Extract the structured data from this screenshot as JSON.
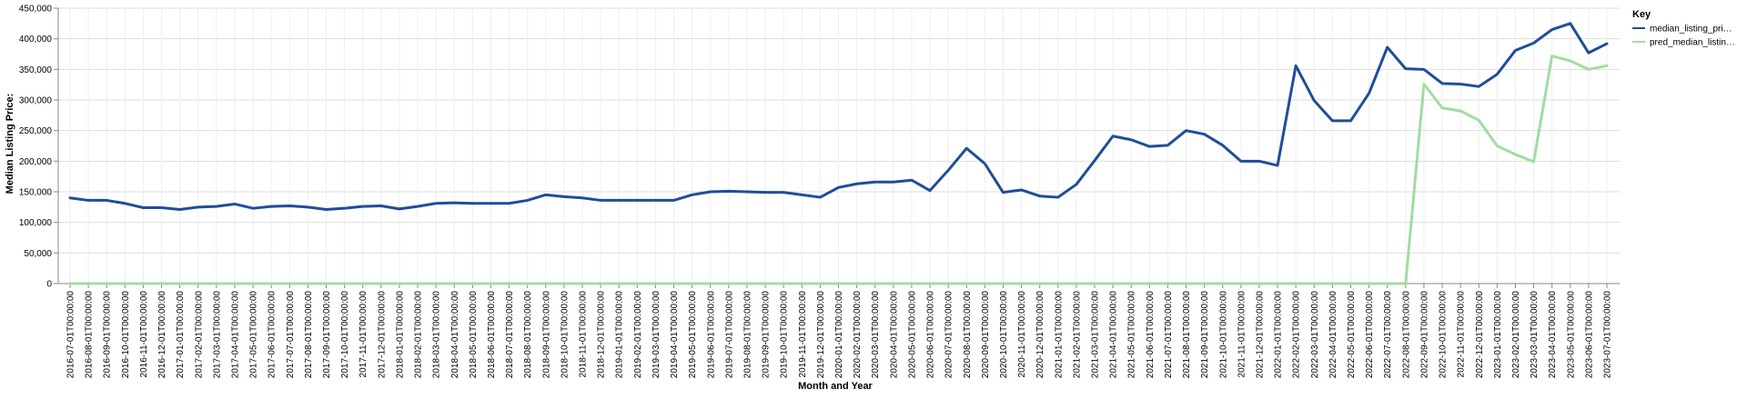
{
  "chart_data": {
    "type": "line",
    "xlabel": "Month and Year",
    "ylabel": "Median Listing Price:",
    "ylim": [
      0,
      450000
    ],
    "y_ticks": [
      "0",
      "50,000",
      "100,000",
      "150,000",
      "200,000",
      "250,000",
      "300,000",
      "350,000",
      "400,000",
      "450,000"
    ],
    "grid": true,
    "legend": {
      "title": "Key",
      "placement": "top-right"
    },
    "x": [
      "2016-07-01T00:00:00",
      "2016-08-01T00:00:00",
      "2016-09-01T00:00:00",
      "2016-10-01T00:00:00",
      "2016-11-01T00:00:00",
      "2016-12-01T00:00:00",
      "2017-01-01T00:00:00",
      "2017-02-01T00:00:00",
      "2017-03-01T00:00:00",
      "2017-04-01T00:00:00",
      "2017-05-01T00:00:00",
      "2017-06-01T00:00:00",
      "2017-07-01T00:00:00",
      "2017-08-01T00:00:00",
      "2017-09-01T00:00:00",
      "2017-10-01T00:00:00",
      "2017-11-01T00:00:00",
      "2017-12-01T00:00:00",
      "2018-01-01T00:00:00",
      "2018-02-01T00:00:00",
      "2018-03-01T00:00:00",
      "2018-04-01T00:00:00",
      "2018-05-01T00:00:00",
      "2018-06-01T00:00:00",
      "2018-07-01T00:00:00",
      "2018-08-01T00:00:00",
      "2018-09-01T00:00:00",
      "2018-10-01T00:00:00",
      "2018-11-01T00:00:00",
      "2018-12-01T00:00:00",
      "2019-01-01T00:00:00",
      "2019-02-01T00:00:00",
      "2019-03-01T00:00:00",
      "2019-04-01T00:00:00",
      "2019-05-01T00:00:00",
      "2019-06-01T00:00:00",
      "2019-07-01T00:00:00",
      "2019-08-01T00:00:00",
      "2019-09-01T00:00:00",
      "2019-10-01T00:00:00",
      "2019-11-01T00:00:00",
      "2019-12-01T00:00:00",
      "2020-01-01T00:00:00",
      "2020-02-01T00:00:00",
      "2020-03-01T00:00:00",
      "2020-04-01T00:00:00",
      "2020-05-01T00:00:00",
      "2020-06-01T00:00:00",
      "2020-07-01T00:00:00",
      "2020-08-01T00:00:00",
      "2020-09-01T00:00:00",
      "2020-10-01T00:00:00",
      "2020-11-01T00:00:00",
      "2020-12-01T00:00:00",
      "2021-01-01T00:00:00",
      "2021-02-01T00:00:00",
      "2021-03-01T00:00:00",
      "2021-04-01T00:00:00",
      "2021-05-01T00:00:00",
      "2021-06-01T00:00:00",
      "2021-07-01T00:00:00",
      "2021-08-01T00:00:00",
      "2021-09-01T00:00:00",
      "2021-10-01T00:00:00",
      "2021-11-01T00:00:00",
      "2021-12-01T00:00:00",
      "2022-01-01T00:00:00",
      "2022-02-01T00:00:00",
      "2022-03-01T00:00:00",
      "2022-04-01T00:00:00",
      "2022-05-01T00:00:00",
      "2022-06-01T00:00:00",
      "2022-07-01T00:00:00",
      "2022-08-01T00:00:00",
      "2022-09-01T00:00:00",
      "2022-10-01T00:00:00",
      "2022-11-01T00:00:00",
      "2022-12-01T00:00:00",
      "2023-01-01T00:00:00",
      "2023-02-01T00:00:00",
      "2023-03-01T00:00:00",
      "2023-04-01T00:00:00",
      "2023-05-01T00:00:00",
      "2023-06-01T00:00:00",
      "2023-07-01T00:00:00"
    ],
    "series": [
      {
        "name": "median_listing_pri…",
        "color": "#1f4e99",
        "values": [
          140000,
          136000,
          136000,
          131000,
          124000,
          124000,
          121000,
          125000,
          126000,
          130000,
          123000,
          126000,
          127000,
          125000,
          121000,
          123000,
          126000,
          127000,
          122000,
          126000,
          131000,
          132000,
          131000,
          131000,
          131000,
          136000,
          145000,
          142000,
          140000,
          136000,
          136000,
          136000,
          136000,
          136000,
          145000,
          150000,
          151000,
          150000,
          149000,
          149000,
          145000,
          141000,
          157000,
          163000,
          166000,
          166000,
          169000,
          152000,
          185000,
          221000,
          196000,
          149000,
          153000,
          143000,
          141000,
          162000,
          201000,
          241000,
          235000,
          224000,
          226000,
          250000,
          244000,
          226000,
          200000,
          200000,
          193000,
          356000,
          299000,
          266000,
          266000,
          311000,
          386000,
          351000,
          350000,
          327000,
          326000,
          322000,
          342000,
          381000,
          393000,
          415000,
          425000,
          377000,
          392000
        ]
      },
      {
        "name": "pred_median_listin…",
        "color": "#a3dca0",
        "values": [
          0,
          0,
          0,
          0,
          0,
          0,
          0,
          0,
          0,
          0,
          0,
          0,
          0,
          0,
          0,
          0,
          0,
          0,
          0,
          0,
          0,
          0,
          0,
          0,
          0,
          0,
          0,
          0,
          0,
          0,
          0,
          0,
          0,
          0,
          0,
          0,
          0,
          0,
          0,
          0,
          0,
          0,
          0,
          0,
          0,
          0,
          0,
          0,
          0,
          0,
          0,
          0,
          0,
          0,
          0,
          0,
          0,
          0,
          0,
          0,
          0,
          0,
          0,
          0,
          0,
          0,
          0,
          0,
          0,
          0,
          0,
          0,
          0,
          0,
          326000,
          287000,
          282000,
          267000,
          225000,
          211000,
          199000,
          372000,
          364000,
          350000,
          356000
        ]
      }
    ]
  }
}
